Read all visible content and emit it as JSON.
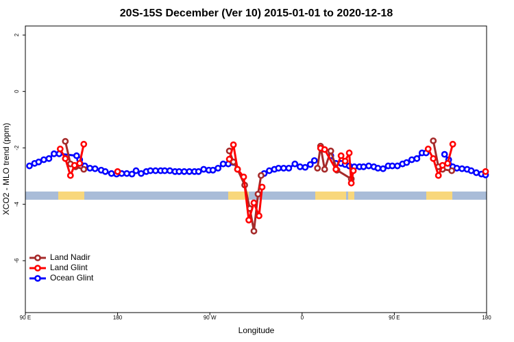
{
  "chart_data": {
    "type": "line",
    "title": "20S-15S December (Ver 10)   2015-01-01 to 2020-12-18",
    "x_label": "Longitude",
    "y_label": "XCO2 - MLO trend (ppm)",
    "xlim": [
      90,
      540
    ],
    "ylim": [
      -7.84,
      2.32
    ],
    "xticks": [
      {
        "value": 90,
        "label": "90 E"
      },
      180,
      {
        "value": 270,
        "label": "90 W"
      },
      {
        "value": 360,
        "label": "0"
      },
      {
        "value": 450,
        "label": "90 E"
      },
      {
        "value": 540,
        "label": "180"
      }
    ],
    "yticks": [
      -6,
      -4,
      -2,
      0,
      2
    ],
    "legend": "bottom-left",
    "series": [
      {
        "name": "Land Nadir",
        "color": "#a52a2a",
        "x": [
          129,
          134,
          139,
          147,
          null,
          289,
          293,
          297,
          304,
          309,
          313,
          317,
          320,
          null,
          375,
          378,
          382,
          388,
          394,
          408,
          null,
          488,
          493,
          497,
          506
        ],
        "values": [
          -1.77,
          -2.57,
          -2.67,
          -2.76,
          null,
          -2.11,
          -2.5,
          -2.76,
          -3.32,
          -4.15,
          -4.95,
          -3.64,
          -2.98,
          null,
          -2.72,
          -1.94,
          -2.76,
          -2.11,
          -2.79,
          -3.1,
          null,
          -1.75,
          -2.67,
          -2.76,
          -2.81
        ]
      },
      {
        "name": "Land Glint",
        "color": "#ff0000",
        "x": [
          124,
          129,
          134,
          138,
          143,
          147,
          null,
          180,
          null,
          289,
          293,
          297,
          303,
          308,
          313,
          318,
          321,
          null,
          378,
          382,
          393,
          398,
          402,
          406,
          408,
          410,
          null,
          483,
          488,
          493,
          497,
          502,
          507,
          null,
          539
        ],
        "values": [
          -2.04,
          -2.38,
          -2.98,
          -2.62,
          -2.55,
          -1.87,
          null,
          -2.84,
          null,
          -2.4,
          -1.89,
          -2.76,
          -3.03,
          -4.56,
          -3.95,
          -4.41,
          -3.39,
          null,
          -2.01,
          -2.06,
          -2.76,
          -2.28,
          -2.47,
          -2.18,
          -3.25,
          -2.81,
          null,
          -2.04,
          -2.38,
          -2.98,
          -2.62,
          -2.55,
          -1.87,
          null,
          -2.84
        ]
      },
      {
        "name": "Ocean Glint",
        "color": "#0000ff",
        "x": [
          94,
          99,
          103,
          108,
          113,
          118,
          123,
          140,
          143,
          148,
          153,
          158,
          164,
          168,
          174,
          179,
          184,
          189,
          194,
          198,
          203,
          208,
          212,
          217,
          222,
          226,
          231,
          236,
          240,
          245,
          250,
          255,
          259,
          264,
          269,
          273,
          278,
          283,
          288,
          293,
          null,
          323,
          328,
          333,
          337,
          342,
          347,
          353,
          358,
          363,
          368,
          372,
          null,
          388,
          393,
          398,
          402,
          406,
          411,
          416,
          420,
          425,
          430,
          434,
          439,
          444,
          448,
          453,
          458,
          462,
          467,
          472,
          477,
          481,
          null,
          499,
          503,
          507,
          511,
          516,
          521,
          525,
          530,
          535,
          539
        ],
        "values": [
          -2.64,
          -2.55,
          -2.5,
          -2.42,
          -2.38,
          -2.21,
          -2.21,
          -2.28,
          -2.42,
          -2.64,
          -2.72,
          -2.74,
          -2.79,
          -2.84,
          -2.91,
          -2.93,
          -2.91,
          -2.91,
          -2.93,
          -2.81,
          -2.91,
          -2.84,
          -2.81,
          -2.81,
          -2.81,
          -2.81,
          -2.81,
          -2.84,
          -2.84,
          -2.84,
          -2.84,
          -2.84,
          -2.84,
          -2.76,
          -2.79,
          -2.79,
          -2.72,
          -2.57,
          -2.57,
          -2.52,
          null,
          -2.91,
          -2.81,
          -2.76,
          -2.72,
          -2.72,
          -2.72,
          -2.57,
          -2.67,
          -2.69,
          -2.59,
          -2.45,
          null,
          -2.28,
          -2.55,
          -2.55,
          -2.59,
          -2.64,
          -2.67,
          -2.67,
          -2.67,
          -2.64,
          -2.67,
          -2.72,
          -2.74,
          -2.64,
          -2.64,
          -2.64,
          -2.57,
          -2.52,
          -2.42,
          -2.38,
          -2.18,
          -2.18,
          null,
          -2.23,
          -2.42,
          -2.67,
          -2.72,
          -2.74,
          -2.76,
          -2.81,
          -2.88,
          -2.93,
          -2.96
        ]
      }
    ]
  }
}
